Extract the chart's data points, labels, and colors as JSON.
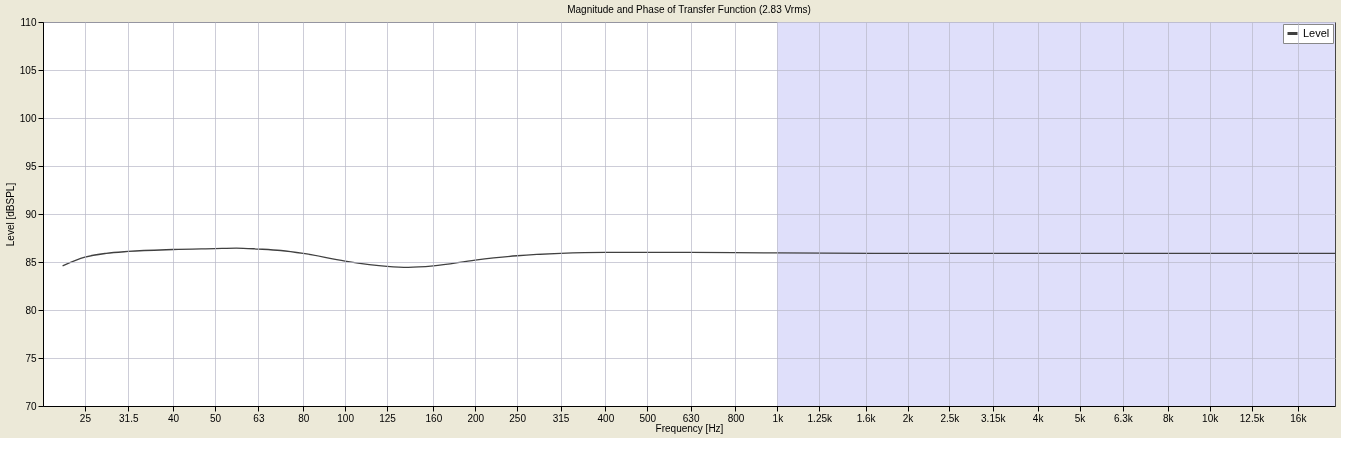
{
  "chart_data": {
    "type": "line",
    "title": "Magnitude and Phase of Transfer Function (2.83 Vrms)",
    "xlabel": "Frequency [Hz]",
    "ylabel": "Level [dBSPL]",
    "log": "x",
    "xlim": [
      20,
      19500
    ],
    "ylim": [
      70,
      110
    ],
    "xticks": [
      25,
      31.5,
      40,
      50,
      63,
      80,
      100,
      125,
      160,
      200,
      250,
      315,
      400,
      500,
      630,
      800,
      {
        "value": 1000,
        "label": "1k"
      },
      {
        "value": 1250,
        "label": "1.25k"
      },
      {
        "value": 1600,
        "label": "1.6k"
      },
      {
        "value": 2000,
        "label": "2k"
      },
      {
        "value": 2500,
        "label": "2.5k"
      },
      {
        "value": 3150,
        "label": "3.15k"
      },
      {
        "value": 4000,
        "label": "4k"
      },
      {
        "value": 5000,
        "label": "5k"
      },
      {
        "value": 6300,
        "label": "6.3k"
      },
      {
        "value": 8000,
        "label": "8k"
      },
      {
        "value": 10000,
        "label": "10k"
      },
      {
        "value": 12500,
        "label": "12.5k"
      },
      {
        "value": 16000,
        "label": "16k"
      }
    ],
    "yticks": [
      70,
      75,
      80,
      85,
      90,
      95,
      100,
      105,
      110
    ],
    "grid": true,
    "legend": "top right",
    "line_style": "solid",
    "marker": "none",
    "bands": [
      {
        "axis": "x",
        "from": 1000,
        "to": 19500,
        "color": "#dcdcfa"
      }
    ],
    "series": [
      {
        "name": "Level",
        "color": "#404040",
        "x": [
          22.2,
          25,
          28,
          31.5,
          40,
          50,
          56,
          63,
          71,
          80,
          100,
          125,
          140,
          160,
          200,
          250,
          315,
          400,
          630,
          1000,
          2000,
          19500
        ],
        "values": [
          84.6,
          85.5,
          85.9,
          86.1,
          86.3,
          86.4,
          86.45,
          86.35,
          86.2,
          85.9,
          85.1,
          84.55,
          84.45,
          84.6,
          85.2,
          85.65,
          85.9,
          86.0,
          86.0,
          85.95,
          85.9,
          85.9
        ]
      }
    ]
  }
}
